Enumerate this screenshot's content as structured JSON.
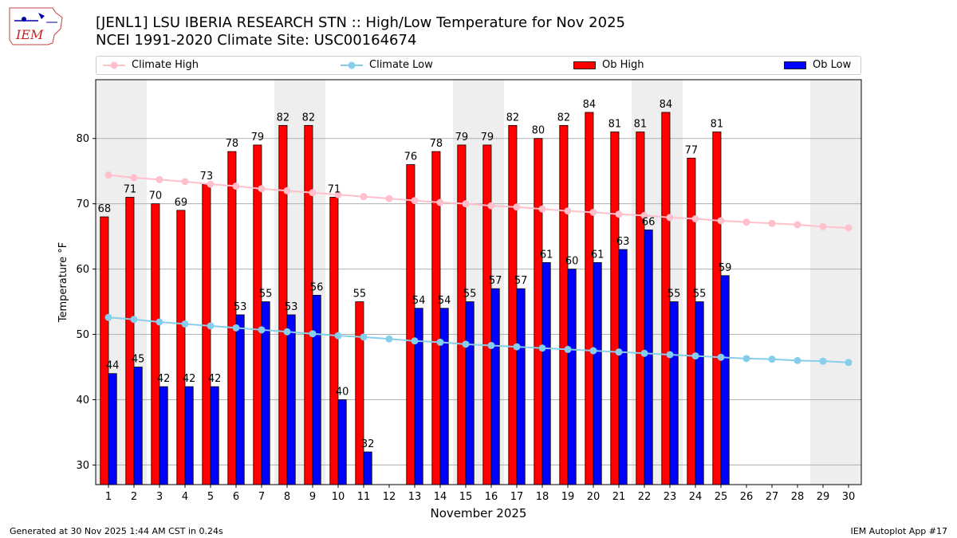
{
  "header": {
    "logo_text": "IEM",
    "title_line_1": "[JENL1] LSU IBERIA RESEARCH STN :: High/Low Temperature for Nov 2025",
    "title_line_2": "NCEI 1991-2020 Climate Site: USC00164674"
  },
  "footer": {
    "generated": "Generated at 30 Nov 2025 1:44 AM CST in 0.24s",
    "app": "IEM Autoplot App #17"
  },
  "colors": {
    "climate_high": "#ffc0cb",
    "climate_low": "#87ceeb",
    "ob_high": "#ff0000",
    "ob_low": "#0000ff",
    "weekend_shade": "#eeeeee",
    "grid": "#b0b0b0"
  },
  "chart_data": {
    "type": "bar",
    "xlabel": "November 2025",
    "ylabel": "Temperature °F",
    "ylim": [
      27,
      89
    ],
    "yticks": [
      30,
      40,
      50,
      60,
      70,
      80
    ],
    "grid": "horizontal",
    "legend_placement": "top",
    "categories": [
      "1",
      "2",
      "3",
      "4",
      "5",
      "6",
      "7",
      "8",
      "9",
      "10",
      "11",
      "12",
      "13",
      "14",
      "15",
      "16",
      "17",
      "18",
      "19",
      "20",
      "21",
      "22",
      "23",
      "24",
      "25",
      "26",
      "27",
      "28",
      "29",
      "30"
    ],
    "shaded_days": [
      1,
      2,
      8,
      9,
      15,
      16,
      22,
      23,
      29,
      30
    ],
    "series": [
      {
        "name": "Climate High",
        "kind": "line",
        "values": [
          74.4,
          74.0,
          73.7,
          73.4,
          73.0,
          72.7,
          72.3,
          72.0,
          71.7,
          71.4,
          71.1,
          70.8,
          70.5,
          70.2,
          70.0,
          69.7,
          69.5,
          69.2,
          68.9,
          68.7,
          68.4,
          68.2,
          67.9,
          67.7,
          67.4,
          67.2,
          67.0,
          66.8,
          66.5,
          66.3
        ]
      },
      {
        "name": "Climate Low",
        "kind": "line",
        "values": [
          52.6,
          52.3,
          51.9,
          51.6,
          51.3,
          51.0,
          50.7,
          50.4,
          50.1,
          49.8,
          49.6,
          49.3,
          49.0,
          48.8,
          48.5,
          48.3,
          48.1,
          47.9,
          47.7,
          47.5,
          47.3,
          47.1,
          46.9,
          46.7,
          46.5,
          46.3,
          46.2,
          46.0,
          45.9,
          45.7
        ]
      },
      {
        "name": "Ob High",
        "kind": "bar",
        "values": [
          68,
          71,
          70,
          69,
          73,
          78,
          79,
          82,
          82,
          71,
          55,
          null,
          76,
          78,
          79,
          79,
          82,
          80,
          82,
          84,
          81,
          81,
          84,
          77,
          81,
          null,
          null,
          null,
          null,
          null
        ]
      },
      {
        "name": "Ob Low",
        "kind": "bar",
        "values": [
          44,
          45,
          42,
          42,
          42,
          53,
          55,
          53,
          56,
          40,
          32,
          null,
          54,
          54,
          55,
          57,
          57,
          61,
          60,
          61,
          63,
          66,
          55,
          55,
          59,
          null,
          null,
          null,
          null,
          null
        ]
      }
    ]
  }
}
